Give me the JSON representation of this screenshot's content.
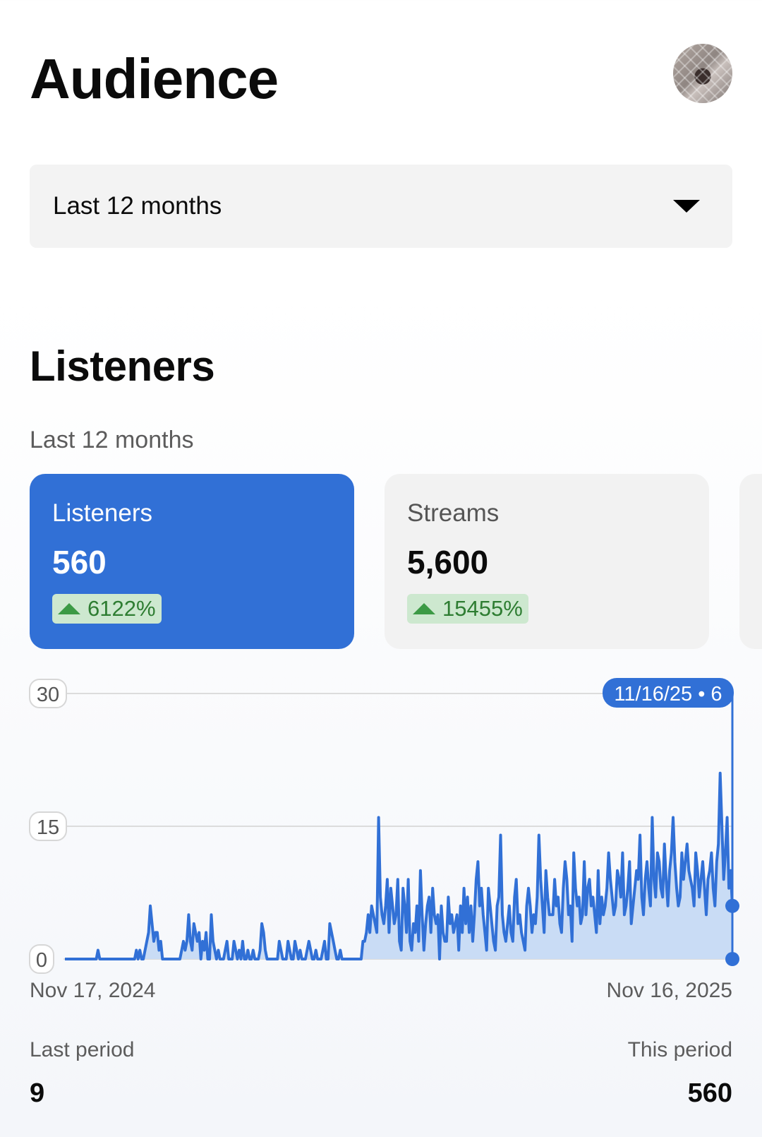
{
  "header": {
    "title": "Audience",
    "avatar_alt": "profile photo"
  },
  "period_select": {
    "value": "Last 12 months"
  },
  "section": {
    "title": "Listeners",
    "subtitle": "Last 12 months"
  },
  "metrics": [
    {
      "label": "Listeners",
      "value": "560",
      "change": "6122%",
      "active": true
    },
    {
      "label": "Streams",
      "value": "5,600",
      "change": "15455%",
      "active": false
    }
  ],
  "colors": {
    "accent": "#3170d6",
    "positive": "#3c9a45",
    "positive_bg": "#cde8cf"
  },
  "chart_data": {
    "type": "area",
    "title": "",
    "ylim": [
      0,
      30
    ],
    "y_ticks": [
      "0",
      "15",
      "30"
    ],
    "x_start_label": "Nov 17, 2024",
    "x_end_label": "Nov 16, 2025",
    "tooltip": "11/16/25 • 6",
    "series": [
      {
        "values": [
          0,
          0,
          0,
          0,
          0,
          0,
          0,
          0,
          0,
          0,
          0,
          0,
          0,
          0,
          0,
          0,
          0,
          0,
          0,
          1,
          0,
          0,
          0,
          0,
          0,
          0,
          0,
          0,
          0,
          0,
          0,
          0,
          0,
          0,
          0,
          0,
          0,
          0,
          0,
          0,
          0,
          1,
          0,
          1,
          0,
          0,
          1,
          2,
          3,
          6,
          4,
          2,
          3,
          3,
          1,
          2,
          0,
          0,
          0,
          0,
          0,
          0,
          0,
          0,
          0,
          0,
          0,
          1,
          2,
          1,
          2,
          5,
          2,
          1,
          4,
          3,
          2,
          3,
          0,
          2,
          1,
          3,
          0,
          0,
          5,
          2,
          1,
          0,
          1,
          0,
          0,
          0,
          1,
          2,
          0,
          0,
          0,
          2,
          1,
          0,
          1,
          0,
          2,
          0,
          0,
          1,
          0,
          0,
          1,
          0,
          0,
          0,
          1,
          4,
          3,
          1,
          0,
          0,
          0,
          0,
          0,
          0,
          0,
          2,
          1,
          0,
          0,
          0,
          2,
          1,
          0,
          0,
          2,
          1,
          0,
          1,
          0,
          0,
          0,
          1,
          2,
          1,
          0,
          0,
          1,
          0,
          0,
          0,
          1,
          2,
          0,
          0,
          4,
          3,
          2,
          1,
          0,
          0,
          1,
          0,
          0,
          0,
          0,
          0,
          0,
          0,
          0,
          0,
          0,
          0,
          0,
          2,
          2,
          3,
          5,
          3,
          6,
          5,
          4,
          3,
          16,
          7,
          5,
          4,
          6,
          9,
          3,
          8,
          6,
          4,
          5,
          9,
          2,
          1,
          8,
          6,
          3,
          9,
          2,
          1,
          4,
          3,
          6,
          2,
          10,
          5,
          1,
          4,
          6,
          7,
          3,
          8,
          5,
          4,
          5,
          0,
          6,
          3,
          2,
          2,
          7,
          4,
          5,
          3,
          4,
          5,
          1,
          6,
          3,
          8,
          4,
          7,
          3,
          6,
          2,
          5,
          9,
          11,
          6,
          8,
          5,
          3,
          1,
          8,
          6,
          4,
          2,
          1,
          6,
          7,
          14,
          5,
          3,
          2,
          4,
          6,
          3,
          2,
          7,
          9,
          4,
          5,
          3,
          2,
          1,
          6,
          8,
          6,
          3,
          5,
          4,
          7,
          14,
          9,
          6,
          3,
          10,
          7,
          5,
          5,
          5,
          9,
          6,
          7,
          4,
          3,
          8,
          11,
          9,
          5,
          6,
          2,
          12,
          8,
          6,
          7,
          4,
          5,
          11,
          5,
          8,
          9,
          6,
          7,
          5,
          3,
          10,
          4,
          7,
          5,
          6,
          8,
          12,
          9,
          7,
          5,
          6,
          10,
          9,
          7,
          12,
          5,
          6,
          8,
          11,
          4,
          6,
          8,
          10,
          9,
          14,
          7,
          5,
          9,
          11,
          8,
          6,
          16,
          9,
          7,
          12,
          11,
          8,
          7,
          13,
          9,
          6,
          10,
          12,
          16,
          11,
          8,
          6,
          7,
          12,
          9,
          11,
          13,
          10,
          9,
          8,
          6,
          12,
          10,
          7,
          9,
          11,
          8,
          5,
          9,
          10,
          12,
          8,
          6,
          11,
          13,
          21,
          15,
          9,
          12,
          16,
          8,
          10,
          6
        ]
      }
    ]
  },
  "footer": {
    "last_period_label": "Last period",
    "last_period_value": "9",
    "this_period_label": "This period",
    "this_period_value": "560"
  }
}
